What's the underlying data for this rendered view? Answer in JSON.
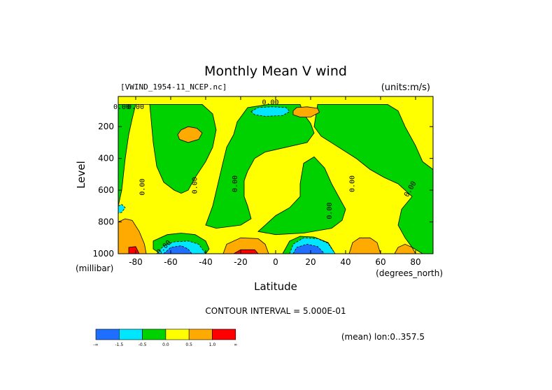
{
  "chart_data": {
    "type": "contour",
    "title": "Monthly Mean V wind",
    "dataset_label": "[VWIND_1954-11_NCEP.nc]",
    "units_label": "(units:m/s)",
    "xlabel": "Latitude",
    "xunits": "(degrees_north)",
    "ylabel": "Level",
    "yunits": "(millibar)",
    "xlim": [
      -90,
      90
    ],
    "ylim": [
      1000,
      10
    ],
    "x_ticks": [
      -80,
      -60,
      -40,
      -20,
      0,
      20,
      40,
      60,
      80
    ],
    "y_ticks": [
      200,
      400,
      600,
      800,
      1000
    ],
    "contour_interval_text": "CONTOUR INTERVAL = 5.000E-01",
    "averaging_text": "(mean) lon:0..357.5",
    "contour_labels": [
      "0.00",
      "0.00",
      "0.00",
      "0.00",
      "0.00",
      "0.00",
      "0.00",
      "0.00",
      "0.00",
      "0.00"
    ],
    "colorbar": {
      "colors": [
        "#1e6eff",
        "#00e6ff",
        "#00d200",
        "#ffff00",
        "#ffaa00",
        "#ff0000"
      ],
      "labels": [
        "-∞",
        "-1.5",
        "-0.5",
        "0.0",
        "0.5",
        "1.0",
        "∞"
      ]
    },
    "regions": [
      {
        "level": "green",
        "color": "#00d200",
        "points": [
          [
            -90,
            700
          ],
          [
            -88,
            600
          ],
          [
            -86,
            400
          ],
          [
            -84,
            250
          ],
          [
            -82,
            150
          ],
          [
            -80,
            60
          ],
          [
            -72,
            60
          ],
          [
            -70,
            300
          ],
          [
            -68,
            450
          ],
          [
            -64,
            550
          ],
          [
            -58,
            600
          ],
          [
            -54,
            620
          ],
          [
            -50,
            600
          ],
          [
            -46,
            520
          ],
          [
            -40,
            420
          ],
          [
            -36,
            330
          ],
          [
            -34,
            220
          ],
          [
            -36,
            120
          ],
          [
            -42,
            60
          ],
          [
            -90,
            60
          ]
        ]
      },
      {
        "level": "green",
        "color": "#00d200",
        "points": [
          [
            -36,
            700
          ],
          [
            -33,
            560
          ],
          [
            -30,
            420
          ],
          [
            -28,
            330
          ],
          [
            -24,
            250
          ],
          [
            -22,
            170
          ],
          [
            -16,
            80
          ],
          [
            -4,
            60
          ],
          [
            14,
            60
          ],
          [
            16,
            120
          ],
          [
            20,
            180
          ],
          [
            22,
            240
          ],
          [
            18,
            300
          ],
          [
            6,
            330
          ],
          [
            -6,
            360
          ],
          [
            -12,
            400
          ],
          [
            -16,
            480
          ],
          [
            -18,
            540
          ],
          [
            -18,
            640
          ],
          [
            -16,
            700
          ],
          [
            -14,
            780
          ],
          [
            -20,
            820
          ],
          [
            -34,
            840
          ],
          [
            -40,
            820
          ]
        ]
      },
      {
        "level": "green",
        "color": "#00d200",
        "points": [
          [
            -10,
            860
          ],
          [
            0,
            760
          ],
          [
            8,
            710
          ],
          [
            14,
            640
          ],
          [
            14,
            560
          ],
          [
            16,
            430
          ],
          [
            22,
            390
          ],
          [
            28,
            460
          ],
          [
            32,
            560
          ],
          [
            36,
            640
          ],
          [
            40,
            720
          ],
          [
            38,
            790
          ],
          [
            32,
            840
          ],
          [
            16,
            870
          ],
          [
            0,
            880
          ]
        ]
      },
      {
        "level": "green",
        "color": "#00d200",
        "points": [
          [
            24,
            60
          ],
          [
            40,
            60
          ],
          [
            64,
            60
          ],
          [
            70,
            100
          ],
          [
            74,
            200
          ],
          [
            80,
            320
          ],
          [
            84,
            420
          ],
          [
            90,
            470
          ],
          [
            90,
            1000
          ],
          [
            84,
            1000
          ],
          [
            78,
            960
          ],
          [
            74,
            900
          ],
          [
            70,
            820
          ],
          [
            72,
            720
          ],
          [
            78,
            640
          ],
          [
            70,
            560
          ],
          [
            62,
            520
          ],
          [
            54,
            470
          ],
          [
            46,
            400
          ],
          [
            36,
            330
          ],
          [
            26,
            260
          ],
          [
            22,
            200
          ]
        ]
      },
      {
        "level": "green",
        "color": "#00d200",
        "points": [
          [
            -70,
            920
          ],
          [
            -62,
            880
          ],
          [
            -54,
            870
          ],
          [
            -46,
            880
          ],
          [
            -40,
            920
          ],
          [
            -38,
            970
          ],
          [
            -40,
            1000
          ],
          [
            -66,
            1000
          ],
          [
            -70,
            970
          ]
        ]
      },
      {
        "level": "green",
        "color": "#00d200",
        "points": [
          [
            4,
            1000
          ],
          [
            8,
            920
          ],
          [
            14,
            890
          ],
          [
            22,
            895
          ],
          [
            30,
            930
          ],
          [
            34,
            1000
          ]
        ]
      },
      {
        "level": "orange",
        "color": "#ffaa00",
        "points": [
          [
            -54,
            220
          ],
          [
            -50,
            200
          ],
          [
            -45,
            210
          ],
          [
            -42,
            240
          ],
          [
            -44,
            280
          ],
          [
            -50,
            300
          ],
          [
            -55,
            280
          ],
          [
            -56,
            250
          ]
        ]
      },
      {
        "level": "orange",
        "color": "#ffaa00",
        "points": [
          [
            10,
            100
          ],
          [
            12,
            80
          ],
          [
            18,
            75
          ],
          [
            24,
            85
          ],
          [
            25,
            110
          ],
          [
            20,
            140
          ],
          [
            14,
            140
          ],
          [
            10,
            125
          ]
        ]
      },
      {
        "level": "orange",
        "color": "#ffaa00",
        "points": [
          [
            -90,
            800
          ],
          [
            -86,
            780
          ],
          [
            -82,
            790
          ],
          [
            -78,
            860
          ],
          [
            -75,
            940
          ],
          [
            -74,
            1000
          ],
          [
            -90,
            1000
          ]
        ]
      },
      {
        "level": "orange",
        "color": "#ffaa00",
        "points": [
          [
            -30,
            1000
          ],
          [
            -28,
            940
          ],
          [
            -20,
            900
          ],
          [
            -10,
            905
          ],
          [
            -6,
            940
          ],
          [
            -4,
            1000
          ]
        ]
      },
      {
        "level": "orange",
        "color": "#ffaa00",
        "points": [
          [
            42,
            1000
          ],
          [
            44,
            930
          ],
          [
            48,
            900
          ],
          [
            54,
            900
          ],
          [
            58,
            930
          ],
          [
            60,
            1000
          ]
        ]
      },
      {
        "level": "orange",
        "color": "#ffaa00",
        "points": [
          [
            68,
            1000
          ],
          [
            70,
            960
          ],
          [
            74,
            940
          ],
          [
            78,
            960
          ],
          [
            80,
            1000
          ]
        ]
      },
      {
        "level": "cyan",
        "color": "#00e6ff",
        "points": [
          [
            -14,
            105
          ],
          [
            -10,
            80
          ],
          [
            -2,
            75
          ],
          [
            6,
            80
          ],
          [
            8,
            105
          ],
          [
            4,
            130
          ],
          [
            -6,
            135
          ],
          [
            -12,
            125
          ]
        ]
      },
      {
        "level": "cyan",
        "color": "#00e6ff",
        "points": [
          [
            -68,
            1000
          ],
          [
            -64,
            950
          ],
          [
            -58,
            925
          ],
          [
            -50,
            920
          ],
          [
            -44,
            940
          ],
          [
            -40,
            1000
          ]
        ]
      },
      {
        "level": "cyan",
        "color": "#00e6ff",
        "points": [
          [
            8,
            1000
          ],
          [
            10,
            940
          ],
          [
            16,
            900
          ],
          [
            24,
            905
          ],
          [
            30,
            935
          ],
          [
            34,
            1000
          ]
        ]
      },
      {
        "level": "cyan",
        "color": "#00e6ff",
        "points": [
          [
            -90,
            700
          ],
          [
            -88,
            690
          ],
          [
            -86,
            710
          ],
          [
            -88,
            740
          ],
          [
            -90,
            745
          ]
        ]
      },
      {
        "level": "blue",
        "color": "#1e6eff",
        "points": [
          [
            -64,
            1000
          ],
          [
            -60,
            960
          ],
          [
            -54,
            950
          ],
          [
            -50,
            970
          ],
          [
            -48,
            1000
          ]
        ]
      },
      {
        "level": "blue",
        "color": "#1e6eff",
        "points": [
          [
            10,
            1000
          ],
          [
            12,
            960
          ],
          [
            18,
            940
          ],
          [
            24,
            955
          ],
          [
            28,
            1000
          ]
        ]
      },
      {
        "level": "red",
        "color": "#ff0000",
        "points": [
          [
            -84,
            1000
          ],
          [
            -84,
            960
          ],
          [
            -80,
            955
          ],
          [
            -78,
            1000
          ]
        ]
      },
      {
        "level": "red",
        "color": "#ff0000",
        "points": [
          [
            -24,
            1000
          ],
          [
            -20,
            975
          ],
          [
            -12,
            975
          ],
          [
            -10,
            1000
          ]
        ]
      }
    ]
  }
}
